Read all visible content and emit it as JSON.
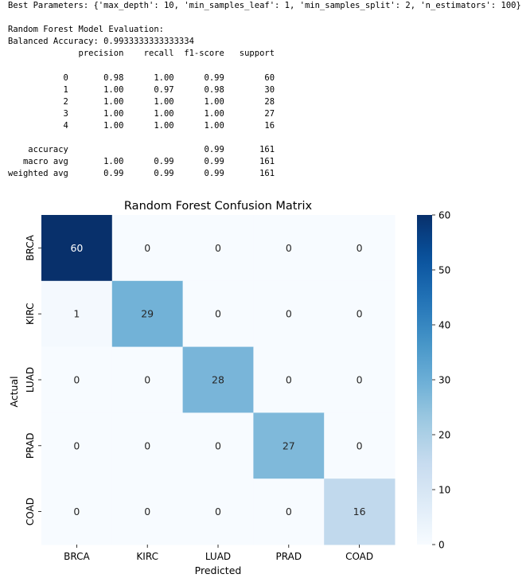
{
  "console": {
    "best_params": "Best Parameters: {'max_depth': 10, 'min_samples_leaf': 1, 'min_samples_split': 2, 'n_estimators': 100}",
    "blank1": "",
    "eval_title": "Random Forest Model Evaluation:",
    "balanced_acc": "Balanced Accuracy: 0.9933333333333334",
    "report_header": "              precision    recall  f1-score   support",
    "blank2": "",
    "row0": "           0       0.98      1.00      0.99        60",
    "row1": "           1       1.00      0.97      0.98        30",
    "row2": "           2       1.00      1.00      1.00        28",
    "row3": "           3       1.00      1.00      1.00        27",
    "row4": "           4       1.00      1.00      1.00        16",
    "blank3": "",
    "accuracy": "    accuracy                           0.99       161",
    "macro": "   macro avg       1.00      0.99      0.99       161",
    "weighted": "weighted avg       0.99      0.99      0.99       161"
  },
  "chart_data": {
    "type": "heatmap",
    "title": "Random Forest Confusion Matrix",
    "xlabel": "Predicted",
    "ylabel": "Actual",
    "x_categories": [
      "BRCA",
      "KIRC",
      "LUAD",
      "PRAD",
      "COAD"
    ],
    "y_categories": [
      "BRCA",
      "KIRC",
      "LUAD",
      "PRAD",
      "COAD"
    ],
    "values": [
      [
        60,
        0,
        0,
        0,
        0
      ],
      [
        1,
        29,
        0,
        0,
        0
      ],
      [
        0,
        0,
        28,
        0,
        0
      ],
      [
        0,
        0,
        0,
        27,
        0
      ],
      [
        0,
        0,
        0,
        0,
        16
      ]
    ],
    "colorbar": {
      "range": [
        0,
        60
      ],
      "ticks": [
        0,
        10,
        20,
        30,
        40,
        50,
        60
      ]
    },
    "colormap": "Blues",
    "colors": {
      "low": "#f7fbff",
      "high": "#08306b"
    }
  }
}
